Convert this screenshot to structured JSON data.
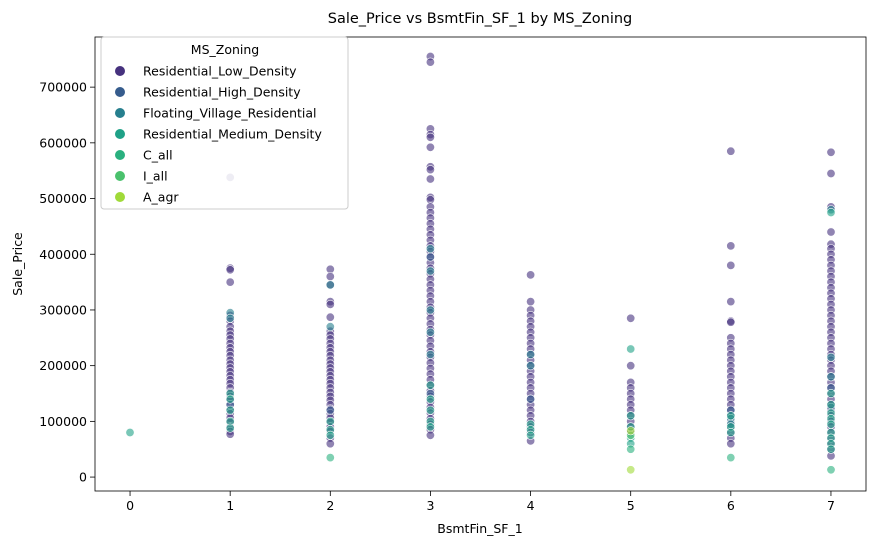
{
  "chart_data": {
    "type": "scatter",
    "title": "Sale_Price vs BsmtFin_SF_1 by MS_Zoning",
    "xlabel": "BsmtFin_SF_1",
    "ylabel": "Sale_Price",
    "xlim": [
      -0.35,
      7.35
    ],
    "ylim": [
      -25000,
      790000
    ],
    "x_ticks": [
      0,
      1,
      2,
      3,
      4,
      5,
      6,
      7
    ],
    "y_ticks": [
      0,
      100000,
      200000,
      300000,
      400000,
      500000,
      600000,
      700000
    ],
    "legend_title": "MS_Zoning",
    "legend_position": "upper-left",
    "grid": false,
    "series": [
      {
        "name": "Residential_Low_Density",
        "color": "#46327e",
        "points": [
          [
            1,
            538000
          ],
          [
            1,
            375000
          ],
          [
            1,
            372000
          ],
          [
            1,
            350000
          ],
          [
            1,
            290000
          ],
          [
            1,
            280000
          ],
          [
            1,
            270000
          ],
          [
            1,
            262000
          ],
          [
            1,
            255000
          ],
          [
            1,
            248000
          ],
          [
            1,
            240000
          ],
          [
            1,
            232000
          ],
          [
            1,
            225000
          ],
          [
            1,
            218000
          ],
          [
            1,
            210000
          ],
          [
            1,
            203000
          ],
          [
            1,
            196000
          ],
          [
            1,
            189000
          ],
          [
            1,
            182000
          ],
          [
            1,
            175000
          ],
          [
            1,
            168000
          ],
          [
            1,
            160000
          ],
          [
            1,
            152000
          ],
          [
            1,
            145000
          ],
          [
            1,
            138000
          ],
          [
            1,
            130000
          ],
          [
            1,
            122000
          ],
          [
            1,
            114000
          ],
          [
            1,
            106000
          ],
          [
            1,
            98000
          ],
          [
            1,
            90000
          ],
          [
            1,
            82000
          ],
          [
            1,
            77000
          ],
          [
            2,
            373000
          ],
          [
            2,
            360000
          ],
          [
            2,
            345000
          ],
          [
            2,
            315000
          ],
          [
            2,
            310000
          ],
          [
            2,
            287000
          ],
          [
            2,
            262000
          ],
          [
            2,
            255000
          ],
          [
            2,
            248000
          ],
          [
            2,
            240000
          ],
          [
            2,
            232000
          ],
          [
            2,
            225000
          ],
          [
            2,
            218000
          ],
          [
            2,
            210000
          ],
          [
            2,
            203000
          ],
          [
            2,
            196000
          ],
          [
            2,
            189000
          ],
          [
            2,
            182000
          ],
          [
            2,
            175000
          ],
          [
            2,
            168000
          ],
          [
            2,
            160000
          ],
          [
            2,
            152000
          ],
          [
            2,
            145000
          ],
          [
            2,
            138000
          ],
          [
            2,
            130000
          ],
          [
            2,
            122000
          ],
          [
            2,
            114000
          ],
          [
            2,
            106000
          ],
          [
            2,
            98000
          ],
          [
            2,
            90000
          ],
          [
            2,
            82000
          ],
          [
            2,
            70000
          ],
          [
            2,
            60000
          ],
          [
            3,
            755000
          ],
          [
            3,
            745000
          ],
          [
            3,
            625000
          ],
          [
            3,
            615000
          ],
          [
            3,
            610000
          ],
          [
            3,
            592000
          ],
          [
            3,
            557000
          ],
          [
            3,
            552000
          ],
          [
            3,
            535000
          ],
          [
            3,
            502000
          ],
          [
            3,
            498000
          ],
          [
            3,
            485000
          ],
          [
            3,
            475000
          ],
          [
            3,
            465000
          ],
          [
            3,
            455000
          ],
          [
            3,
            445000
          ],
          [
            3,
            435000
          ],
          [
            3,
            425000
          ],
          [
            3,
            415000
          ],
          [
            3,
            405000
          ],
          [
            3,
            395000
          ],
          [
            3,
            385000
          ],
          [
            3,
            375000
          ],
          [
            3,
            365000
          ],
          [
            3,
            355000
          ],
          [
            3,
            345000
          ],
          [
            3,
            335000
          ],
          [
            3,
            325000
          ],
          [
            3,
            315000
          ],
          [
            3,
            305000
          ],
          [
            3,
            295000
          ],
          [
            3,
            285000
          ],
          [
            3,
            275000
          ],
          [
            3,
            265000
          ],
          [
            3,
            255000
          ],
          [
            3,
            245000
          ],
          [
            3,
            235000
          ],
          [
            3,
            225000
          ],
          [
            3,
            215000
          ],
          [
            3,
            205000
          ],
          [
            3,
            195000
          ],
          [
            3,
            185000
          ],
          [
            3,
            175000
          ],
          [
            3,
            165000
          ],
          [
            3,
            155000
          ],
          [
            3,
            145000
          ],
          [
            3,
            135000
          ],
          [
            3,
            125000
          ],
          [
            3,
            115000
          ],
          [
            3,
            105000
          ],
          [
            3,
            95000
          ],
          [
            3,
            85000
          ],
          [
            3,
            75000
          ],
          [
            4,
            363000
          ],
          [
            4,
            315000
          ],
          [
            4,
            300000
          ],
          [
            4,
            290000
          ],
          [
            4,
            280000
          ],
          [
            4,
            270000
          ],
          [
            4,
            260000
          ],
          [
            4,
            250000
          ],
          [
            4,
            240000
          ],
          [
            4,
            230000
          ],
          [
            4,
            220000
          ],
          [
            4,
            210000
          ],
          [
            4,
            200000
          ],
          [
            4,
            190000
          ],
          [
            4,
            180000
          ],
          [
            4,
            170000
          ],
          [
            4,
            160000
          ],
          [
            4,
            150000
          ],
          [
            4,
            140000
          ],
          [
            4,
            130000
          ],
          [
            4,
            120000
          ],
          [
            4,
            110000
          ],
          [
            4,
            100000
          ],
          [
            4,
            90000
          ],
          [
            4,
            80000
          ],
          [
            4,
            65000
          ],
          [
            5,
            285000
          ],
          [
            5,
            200000
          ],
          [
            5,
            170000
          ],
          [
            5,
            160000
          ],
          [
            5,
            150000
          ],
          [
            5,
            140000
          ],
          [
            5,
            130000
          ],
          [
            5,
            120000
          ],
          [
            5,
            110000
          ],
          [
            5,
            100000
          ],
          [
            5,
            90000
          ],
          [
            5,
            80000
          ],
          [
            6,
            585000
          ],
          [
            6,
            415000
          ],
          [
            6,
            380000
          ],
          [
            6,
            315000
          ],
          [
            6,
            280000
          ],
          [
            6,
            278000
          ],
          [
            6,
            250000
          ],
          [
            6,
            240000
          ],
          [
            6,
            230000
          ],
          [
            6,
            220000
          ],
          [
            6,
            210000
          ],
          [
            6,
            200000
          ],
          [
            6,
            190000
          ],
          [
            6,
            180000
          ],
          [
            6,
            170000
          ],
          [
            6,
            160000
          ],
          [
            6,
            150000
          ],
          [
            6,
            140000
          ],
          [
            6,
            130000
          ],
          [
            6,
            120000
          ],
          [
            6,
            110000
          ],
          [
            6,
            100000
          ],
          [
            6,
            90000
          ],
          [
            6,
            80000
          ],
          [
            6,
            70000
          ],
          [
            6,
            60000
          ],
          [
            7,
            583000
          ],
          [
            7,
            545000
          ],
          [
            7,
            485000
          ],
          [
            7,
            440000
          ],
          [
            7,
            418000
          ],
          [
            7,
            410000
          ],
          [
            7,
            400000
          ],
          [
            7,
            390000
          ],
          [
            7,
            380000
          ],
          [
            7,
            370000
          ],
          [
            7,
            360000
          ],
          [
            7,
            350000
          ],
          [
            7,
            340000
          ],
          [
            7,
            330000
          ],
          [
            7,
            320000
          ],
          [
            7,
            310000
          ],
          [
            7,
            300000
          ],
          [
            7,
            290000
          ],
          [
            7,
            280000
          ],
          [
            7,
            270000
          ],
          [
            7,
            260000
          ],
          [
            7,
            250000
          ],
          [
            7,
            240000
          ],
          [
            7,
            230000
          ],
          [
            7,
            220000
          ],
          [
            7,
            210000
          ],
          [
            7,
            200000
          ],
          [
            7,
            190000
          ],
          [
            7,
            180000
          ],
          [
            7,
            170000
          ],
          [
            7,
            160000
          ],
          [
            7,
            150000
          ],
          [
            7,
            140000
          ],
          [
            7,
            130000
          ],
          [
            7,
            120000
          ],
          [
            7,
            110000
          ],
          [
            7,
            100000
          ],
          [
            7,
            90000
          ],
          [
            7,
            80000
          ],
          [
            7,
            70000
          ],
          [
            7,
            60000
          ],
          [
            7,
            50000
          ],
          [
            7,
            38000
          ]
        ]
      },
      {
        "name": "Residential_High_Density",
        "color": "#365c8d",
        "points": [
          [
            1,
            130000
          ],
          [
            2,
            120000
          ],
          [
            3,
            395000
          ],
          [
            3,
            150000
          ],
          [
            4,
            140000
          ],
          [
            6,
            120000
          ],
          [
            7,
            160000
          ],
          [
            7,
            125000
          ]
        ]
      },
      {
        "name": "Floating_Village_Residential",
        "color": "#277f8e",
        "points": [
          [
            1,
            295000
          ],
          [
            1,
            285000
          ],
          [
            2,
            345000
          ],
          [
            2,
            270000
          ],
          [
            3,
            410000
          ],
          [
            3,
            370000
          ],
          [
            3,
            300000
          ],
          [
            3,
            260000
          ],
          [
            3,
            220000
          ],
          [
            4,
            220000
          ],
          [
            4,
            200000
          ],
          [
            6,
            105000
          ],
          [
            6,
            95000
          ],
          [
            7,
            480000
          ],
          [
            7,
            215000
          ],
          [
            7,
            180000
          ]
        ]
      },
      {
        "name": "Residential_Medium_Density",
        "color": "#1fa187",
        "points": [
          [
            0,
            80000
          ],
          [
            1,
            150000
          ],
          [
            1,
            140000
          ],
          [
            1,
            120000
          ],
          [
            1,
            100000
          ],
          [
            1,
            88000
          ],
          [
            2,
            100000
          ],
          [
            2,
            85000
          ],
          [
            2,
            75000
          ],
          [
            3,
            165000
          ],
          [
            3,
            140000
          ],
          [
            3,
            120000
          ],
          [
            3,
            100000
          ],
          [
            3,
            90000
          ],
          [
            4,
            95000
          ],
          [
            4,
            85000
          ],
          [
            4,
            75000
          ],
          [
            5,
            230000
          ],
          [
            5,
            110000
          ],
          [
            5,
            90000
          ],
          [
            5,
            70000
          ],
          [
            5,
            60000
          ],
          [
            6,
            110000
          ],
          [
            6,
            90000
          ],
          [
            6,
            80000
          ],
          [
            7,
            475000
          ],
          [
            7,
            150000
          ],
          [
            7,
            130000
          ],
          [
            7,
            115000
          ],
          [
            7,
            105000
          ],
          [
            7,
            95000
          ],
          [
            7,
            80000
          ],
          [
            7,
            70000
          ],
          [
            7,
            60000
          ],
          [
            7,
            50000
          ]
        ]
      },
      {
        "name": "C_all",
        "color": "#2ab07f",
        "points": [
          [
            2,
            35000
          ],
          [
            5,
            50000
          ],
          [
            6,
            35000
          ],
          [
            7,
            13000
          ]
        ]
      },
      {
        "name": "I_all",
        "color": "#4ac16d",
        "points": [
          [
            5,
            75000
          ]
        ]
      },
      {
        "name": "A_agr",
        "color": "#a0da39",
        "points": [
          [
            5,
            13000
          ],
          [
            5,
            83000
          ]
        ]
      }
    ]
  }
}
